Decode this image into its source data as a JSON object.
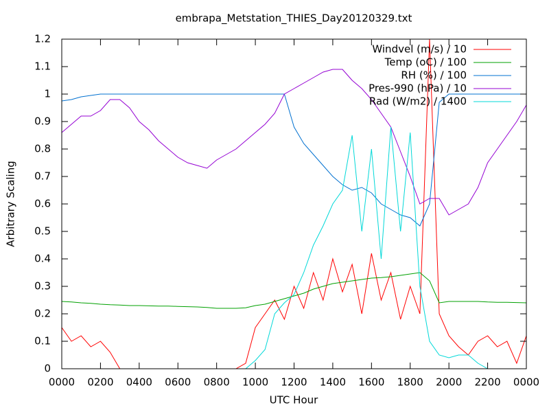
{
  "chart_data": {
    "type": "line",
    "title": "embrapa_Metstation_THIES_Day20120329.txt",
    "x_label": "UTC Hour",
    "y_label": "Arbitrary Scaling",
    "x": [
      0,
      0.5,
      1,
      1.5,
      2,
      2.5,
      3,
      3.5,
      4,
      4.5,
      5,
      5.5,
      6,
      6.5,
      7,
      7.5,
      8,
      8.5,
      9,
      9.5,
      10,
      10.5,
      11,
      11.5,
      12,
      12.5,
      13,
      13.5,
      14,
      14.5,
      15,
      15.5,
      16,
      16.5,
      17,
      17.5,
      18,
      18.5,
      19,
      19.5,
      20,
      20.5,
      21,
      21.5,
      22,
      22.5,
      23,
      23.5,
      24
    ],
    "series": [
      {
        "name": "Windvel (m/s) / 10",
        "color": "#ff0000",
        "values": [
          0.15,
          0.1,
          0.12,
          0.08,
          0.1,
          0.06,
          0,
          0,
          0,
          0,
          0,
          0,
          0,
          0,
          0,
          0,
          0,
          0,
          0,
          0.02,
          0.15,
          0.2,
          0.25,
          0.18,
          0.3,
          0.22,
          0.35,
          0.25,
          0.4,
          0.28,
          0.38,
          0.2,
          0.42,
          0.25,
          0.35,
          0.18,
          0.3,
          0.2,
          1.2,
          0.2,
          0.12,
          0.08,
          0.05,
          0.1,
          0.12,
          0.08,
          0.1,
          0.02,
          0.12
        ]
      },
      {
        "name": "Temp (oC) / 100",
        "color": "#00a000",
        "values": [
          0.245,
          0.243,
          0.24,
          0.238,
          0.235,
          0.233,
          0.232,
          0.23,
          0.23,
          0.229,
          0.228,
          0.228,
          0.227,
          0.226,
          0.225,
          0.223,
          0.22,
          0.22,
          0.22,
          0.222,
          0.23,
          0.235,
          0.245,
          0.255,
          0.265,
          0.275,
          0.29,
          0.3,
          0.31,
          0.315,
          0.32,
          0.325,
          0.33,
          0.332,
          0.335,
          0.34,
          0.345,
          0.35,
          0.32,
          0.24,
          0.245,
          0.245,
          0.245,
          0.245,
          0.243,
          0.242,
          0.242,
          0.241,
          0.24
        ]
      },
      {
        "name": "RH (%) / 100",
        "color": "#0070d0",
        "values": [
          0.975,
          0.98,
          0.99,
          0.995,
          1,
          1,
          1,
          1,
          1,
          1,
          1,
          1,
          1,
          1,
          1,
          1,
          1,
          1,
          1,
          1,
          1,
          1,
          1,
          1,
          0.88,
          0.82,
          0.78,
          0.74,
          0.7,
          0.67,
          0.65,
          0.66,
          0.64,
          0.6,
          0.58,
          0.56,
          0.55,
          0.52,
          0.6,
          0.97,
          1,
          1,
          1,
          1,
          1,
          1,
          1,
          1,
          1
        ]
      },
      {
        "name": "Pres-990 (hPa) / 10",
        "color": "#9400d3",
        "values": [
          0.86,
          0.89,
          0.92,
          0.92,
          0.94,
          0.98,
          0.98,
          0.95,
          0.9,
          0.87,
          0.83,
          0.8,
          0.77,
          0.75,
          0.74,
          0.73,
          0.76,
          0.78,
          0.8,
          0.83,
          0.86,
          0.89,
          0.93,
          1.0,
          1.02,
          1.04,
          1.06,
          1.08,
          1.09,
          1.09,
          1.05,
          1.02,
          0.98,
          0.93,
          0.88,
          0.79,
          0.7,
          0.6,
          0.62,
          0.62,
          0.56,
          0.58,
          0.6,
          0.66,
          0.75,
          0.8,
          0.85,
          0.9,
          0.96
        ]
      },
      {
        "name": "Rad (W/m2) / 1400",
        "color": "#00d8d8",
        "values": [
          0,
          0,
          0,
          0,
          0,
          0,
          0,
          0,
          0,
          0,
          0,
          0,
          0,
          0,
          0,
          0,
          0,
          0,
          0,
          0,
          0.03,
          0.07,
          0.2,
          0.24,
          0.27,
          0.35,
          0.45,
          0.52,
          0.6,
          0.65,
          0.85,
          0.5,
          0.8,
          0.4,
          0.88,
          0.5,
          0.86,
          0.3,
          0.1,
          0.05,
          0.04,
          0.05,
          0.05,
          0.02,
          0,
          0,
          0,
          0,
          0
        ]
      }
    ],
    "xlim": [
      0,
      24
    ],
    "xticks": [
      {
        "value": 0,
        "label": "0000"
      },
      {
        "value": 2,
        "label": "0200"
      },
      {
        "value": 4,
        "label": "0400"
      },
      {
        "value": 6,
        "label": "0600"
      },
      {
        "value": 8,
        "label": "0800"
      },
      {
        "value": 10,
        "label": "1000"
      },
      {
        "value": 12,
        "label": "1200"
      },
      {
        "value": 14,
        "label": "1400"
      },
      {
        "value": 16,
        "label": "1600"
      },
      {
        "value": 18,
        "label": "1800"
      },
      {
        "value": 20,
        "label": "2000"
      },
      {
        "value": 22,
        "label": "2200"
      },
      {
        "value": 24,
        "label": "0000"
      }
    ],
    "ylim": [
      0,
      1.2
    ],
    "yticks": [
      0,
      0.1,
      0.2,
      0.3,
      0.4,
      0.5,
      0.6,
      0.7,
      0.8,
      0.9,
      1,
      1.1,
      1.2
    ],
    "grid": false,
    "legend": "top-right"
  }
}
